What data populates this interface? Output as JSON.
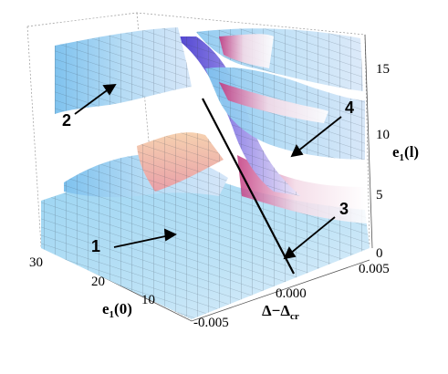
{
  "chart_data": {
    "type": "surface3d",
    "x_axis": {
      "label_main": "e",
      "label_sub": "1",
      "label_arg": "(0)",
      "ticks": [
        "30",
        "20",
        "10"
      ]
    },
    "y_axis": {
      "label_main": "Δ−Δ",
      "label_sub": "cr",
      "ticks": [
        "-0.005",
        "0.000",
        "0.005"
      ]
    },
    "z_axis": {
      "label_main": "e",
      "label_sub": "1",
      "label_arg": "(l)",
      "ticks": [
        "0",
        "5",
        "10",
        "15"
      ]
    },
    "annotations": [
      "1",
      "2",
      "3",
      "4"
    ],
    "colors": {
      "low": "#8fcff0",
      "mid": "#f4e6ef",
      "high": "#c4408e",
      "fold": "#5a4fd0",
      "line": "#000000"
    }
  }
}
